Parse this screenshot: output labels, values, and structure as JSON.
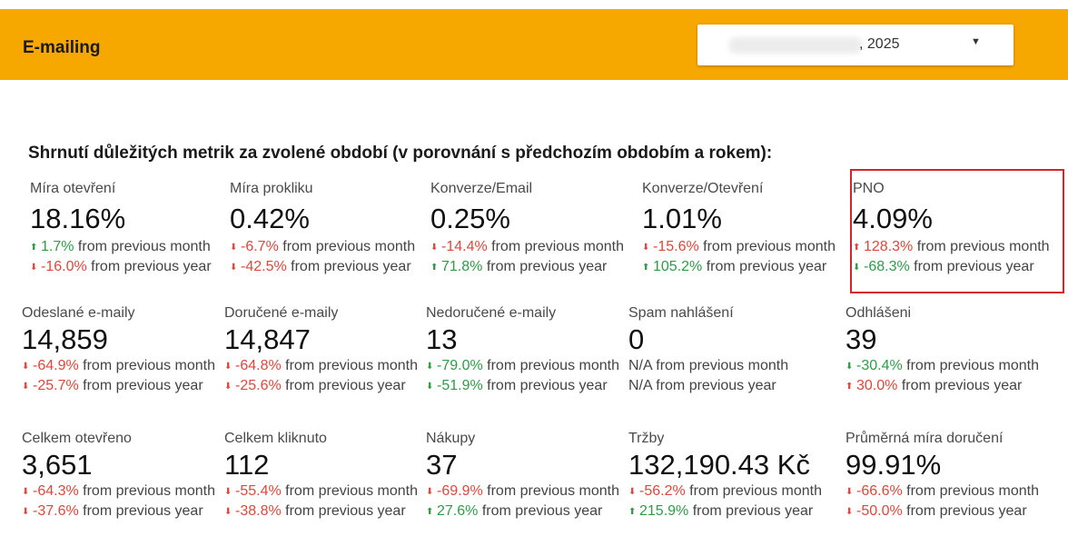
{
  "header": {
    "title": "E-mailing",
    "date_select": {
      "value": ", 2025"
    }
  },
  "section_title": "Shrnutí důležitých metrik za zvolené období (v porovnání s předchozím obdobím a rokem):",
  "metrics": [
    {
      "label": "Míra otevření",
      "value": "18.16%",
      "month": {
        "dir": "up",
        "pct": "1.7%",
        "text": "from previous month"
      },
      "year": {
        "dir": "down",
        "pct": "-16.0%",
        "text": "from previous year"
      }
    },
    {
      "label": "Míra prokliku",
      "value": "0.42%",
      "month": {
        "dir": "down",
        "pct": "-6.7%",
        "text": "from previous month"
      },
      "year": {
        "dir": "down",
        "pct": "-42.5%",
        "text": "from previous year"
      }
    },
    {
      "label": "Konverze/Email",
      "value": "0.25%",
      "month": {
        "dir": "down",
        "pct": "-14.4%",
        "text": "from previous month"
      },
      "year": {
        "dir": "up",
        "pct": "71.8%",
        "text": "from previous year"
      }
    },
    {
      "label": "Konverze/Otevření",
      "value": "1.01%",
      "month": {
        "dir": "down",
        "pct": "-15.6%",
        "text": "from previous month"
      },
      "year": {
        "dir": "up",
        "pct": "105.2%",
        "text": "from previous year"
      }
    },
    {
      "label": "PNO",
      "value": "4.09%",
      "month": {
        "dir": "up-red",
        "pct": "128.3%",
        "text": "from previous month"
      },
      "year": {
        "dir": "down-green",
        "pct": "-68.3%",
        "text": "from previous year"
      }
    },
    {
      "label": "Odeslané e-maily",
      "value": "14,859",
      "month": {
        "dir": "down",
        "pct": "-64.9%",
        "text": "from previous month"
      },
      "year": {
        "dir": "down",
        "pct": "-25.7%",
        "text": "from previous year"
      }
    },
    {
      "label": "Doručené e-maily",
      "value": "14,847",
      "month": {
        "dir": "down",
        "pct": "-64.8%",
        "text": "from previous month"
      },
      "year": {
        "dir": "down",
        "pct": "-25.6%",
        "text": "from previous year"
      }
    },
    {
      "label": "Nedoručené e-maily",
      "value": "13",
      "month": {
        "dir": "down-green",
        "pct": "-79.0%",
        "text": "from previous month"
      },
      "year": {
        "dir": "down-green",
        "pct": "-51.9%",
        "text": "from previous year"
      }
    },
    {
      "label": "Spam nahlášení",
      "value": "0",
      "month": {
        "dir": "none",
        "pct": "N/A",
        "text": "from previous month"
      },
      "year": {
        "dir": "none",
        "pct": "N/A",
        "text": "from previous year"
      }
    },
    {
      "label": "Odhlášeni",
      "value": "39",
      "month": {
        "dir": "down-green",
        "pct": "-30.4%",
        "text": "from previous month"
      },
      "year": {
        "dir": "up-red",
        "pct": "30.0%",
        "text": "from previous year"
      }
    },
    {
      "label": "Celkem otevřeno",
      "value": "3,651",
      "month": {
        "dir": "down",
        "pct": "-64.3%",
        "text": "from previous month"
      },
      "year": {
        "dir": "down",
        "pct": "-37.6%",
        "text": "from previous year"
      }
    },
    {
      "label": "Celkem kliknuto",
      "value": "112",
      "month": {
        "dir": "down",
        "pct": "-55.4%",
        "text": "from previous month"
      },
      "year": {
        "dir": "down",
        "pct": "-38.8%",
        "text": "from previous year"
      }
    },
    {
      "label": "Nákupy",
      "value": "37",
      "month": {
        "dir": "down",
        "pct": "-69.9%",
        "text": "from previous month"
      },
      "year": {
        "dir": "up",
        "pct": "27.6%",
        "text": "from previous year"
      }
    },
    {
      "label": "Tržby",
      "value": "132,190.43 Kč",
      "month": {
        "dir": "down",
        "pct": "-56.2%",
        "text": "from previous month"
      },
      "year": {
        "dir": "up",
        "pct": "215.9%",
        "text": "from previous year"
      }
    },
    {
      "label": "Průměrná míra doručení",
      "value": "99.91%",
      "month": {
        "dir": "down",
        "pct": "-66.6%",
        "text": "from previous month"
      },
      "year": {
        "dir": "down",
        "pct": "-50.0%",
        "text": "from previous year"
      }
    }
  ],
  "colors": {
    "header_bg": "#f6a700",
    "positive": "#2e9c47",
    "negative": "#e0463b",
    "highlight_border": "#d4262a"
  }
}
